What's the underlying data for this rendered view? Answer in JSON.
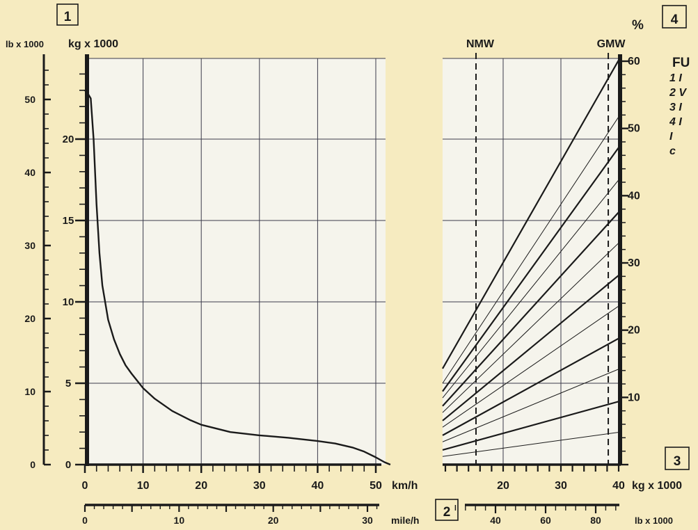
{
  "chart_data": [
    {
      "type": "line",
      "box_label": "1",
      "ylabel_lb": "lb x 1000",
      "ylabel_kg": "kg x 1000",
      "xunit_kmh": "km/h",
      "xunit_mph": "mile/h",
      "box2_label": "2",
      "x_kmh_ticks": [
        "0",
        "10",
        "20",
        "30",
        "40",
        "50"
      ],
      "x_mph_ticks": [
        "0",
        "10",
        "20",
        "30"
      ],
      "y_kg_ticks": [
        "0",
        "5",
        "10",
        "15",
        "20"
      ],
      "y_lb_ticks": [
        "0",
        "10",
        "20",
        "30",
        "40",
        "50"
      ],
      "xlim_kmh": [
        0,
        52
      ],
      "ylim_kg": [
        0,
        25
      ],
      "grid": true,
      "series": [
        {
          "x": [
            0,
            0.5,
            1,
            1.5,
            2,
            2.5,
            3,
            4,
            5,
            6,
            7,
            8,
            10,
            12,
            15,
            18,
            20,
            25,
            30,
            35,
            40,
            43,
            46,
            48,
            50,
            51.5,
            52.5
          ],
          "y": [
            23.0,
            22.8,
            22.5,
            20.0,
            16.0,
            13.0,
            11.0,
            8.9,
            7.7,
            6.8,
            6.1,
            5.6,
            4.7,
            4.05,
            3.3,
            2.75,
            2.45,
            2.0,
            1.8,
            1.65,
            1.45,
            1.3,
            1.05,
            0.8,
            0.45,
            0.15,
            0.0
          ]
        }
      ]
    },
    {
      "type": "line",
      "box_label": "4",
      "y_unit": "%",
      "box3_label": "3",
      "nmw_label": "NMW",
      "gmw_label": "GMW",
      "nmw_x": 15.3,
      "gmw_x": 38.2,
      "xunit_kg": "kg x 1000",
      "xunit_lb": "lb x 1000",
      "x_kg_ticks": [
        "20",
        "30",
        "40"
      ],
      "x_lb_ticks": [
        "40",
        "60",
        "80"
      ],
      "y_pct_ticks": [
        "10",
        "20",
        "30",
        "40",
        "50",
        "60"
      ],
      "xlim_kg": [
        9,
        40
      ],
      "ylim_kg": [
        0,
        25
      ],
      "grid": true,
      "series": [
        {
          "grade_pct": 5,
          "x": [
            9,
            40
          ],
          "y": [
            0.5,
            2.0
          ]
        },
        {
          "grade_pct": 10,
          "x": [
            9,
            40
          ],
          "y": [
            0.9,
            3.9
          ]
        },
        {
          "grade_pct": 15,
          "x": [
            9,
            40
          ],
          "y": [
            1.4,
            5.9
          ]
        },
        {
          "grade_pct": 20,
          "x": [
            9,
            40
          ],
          "y": [
            1.8,
            7.8
          ]
        },
        {
          "grade_pct": 25,
          "x": [
            9,
            40
          ],
          "y": [
            2.3,
            9.8
          ]
        },
        {
          "grade_pct": 30,
          "x": [
            9,
            40
          ],
          "y": [
            2.7,
            11.7
          ]
        },
        {
          "grade_pct": 35,
          "x": [
            9,
            40
          ],
          "y": [
            3.2,
            13.7
          ]
        },
        {
          "grade_pct": 40,
          "x": [
            9,
            40
          ],
          "y": [
            3.6,
            15.6
          ]
        },
        {
          "grade_pct": 45,
          "x": [
            9,
            40
          ],
          "y": [
            4.1,
            17.6
          ]
        },
        {
          "grade_pct": 50,
          "x": [
            9,
            40
          ],
          "y": [
            4.5,
            19.6
          ]
        },
        {
          "grade_pct": 55,
          "x": [
            9,
            40
          ],
          "y": [
            5.0,
            21.5
          ]
        },
        {
          "grade_pct": 60,
          "x": [
            9,
            40
          ],
          "y": [
            5.9,
            25.0
          ]
        }
      ]
    }
  ],
  "legend": {
    "title": "FU",
    "items": [
      "1 I",
      "2 V",
      "3 I",
      "4 I",
      "  I",
      "  c"
    ]
  }
}
